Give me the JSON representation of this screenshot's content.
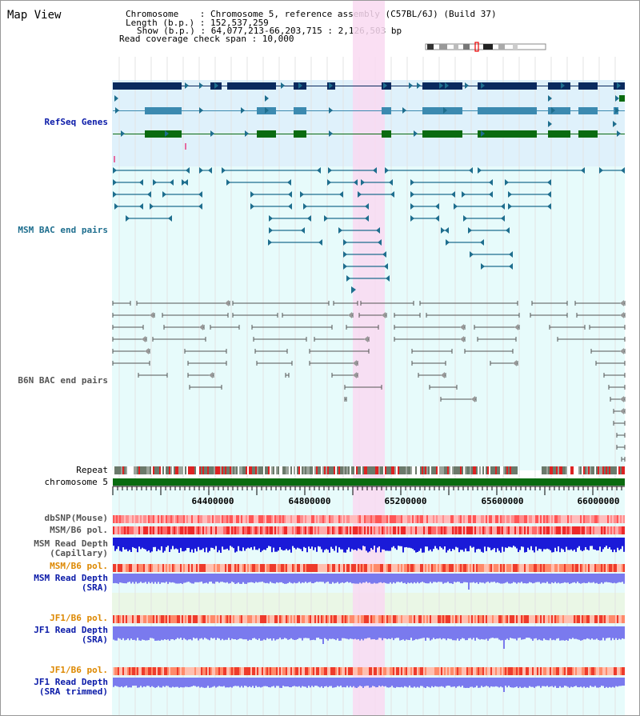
{
  "title": "Map View",
  "info": {
    "chromosome": "Chromosome    : Chromosome 5, reference assembly (C57BL/6J) (Build 37)",
    "length": "Length (b.p.) : 152,537,259",
    "show": "Show (b.p.) : 64,077,213-66,203,715 : 2,126,503 bp",
    "read_coverage": "Read coverage check span : 10,000"
  },
  "tracks": {
    "refseq": "RefSeq Genes",
    "msm_bac": "MSM BAC end pairs",
    "b6n_bac": "B6N BAC end pairs",
    "repeat": "Repeat",
    "chromosome": "chromosome 5",
    "dbsnp": "dbSNP(Mouse)",
    "msm_b6_pol_1": "MSM/B6 pol.",
    "msm_depth_cap_1": "MSM Read Depth",
    "msm_depth_cap_2": "(Capillary)",
    "msm_b6_pol_2": "MSM/B6 pol.",
    "msm_depth_sra_1": "MSM Read Depth",
    "msm_depth_sra_2": "(SRA)",
    "jf1_b6_pol_1": "JF1/B6 pol.",
    "jf1_depth_sra_1": "JF1 Read Depth",
    "jf1_depth_sra_2": "(SRA)",
    "jf1_b6_pol_2": "JF1/B6 pol.",
    "jf1_depth_trim_1": "JF1 Read Depth",
    "jf1_depth_trim_2": "(SRA trimmed)"
  },
  "axis_ticks": [
    "64400000",
    "64800000",
    "65200000",
    "65600000",
    "66000000"
  ],
  "colors": {
    "refseq_bg": "#dff1fb",
    "bac_bg": "#e7fbfb",
    "highlight": "#f9d9f1",
    "dark_gene": "#0a2a5e",
    "mid_gene": "#3c8ab0",
    "green_gene": "#0a6b10",
    "msm_bac": "#1e6e8e",
    "b6n_bac": "#555555",
    "chromosome": "#0a6b10",
    "pol_red": "#ee3333",
    "depth_dark_blue": "#1a1ad8",
    "depth_light_blue": "#7a7aee",
    "label_blue": "#0a1aa8",
    "label_teal": "#1e6e8e",
    "label_orange": "#dd8800"
  }
}
